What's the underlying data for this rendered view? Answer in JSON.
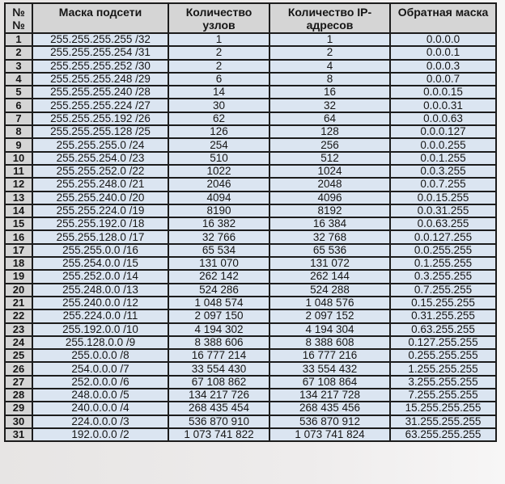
{
  "colors": {
    "header_bg": "#d5d5d5",
    "row_number_bg": "#d5d5d5",
    "data_cell_bg": "#dbe5f1",
    "border": "#1c1c1c",
    "page_bg": "#e9e7e6",
    "text": "#161616"
  },
  "table": {
    "headers": [
      "№№",
      "Маска подсети",
      "Количество узлов",
      "Количество IP-адресов",
      "Обратная маска"
    ],
    "rows": [
      [
        "1",
        "255.255.255.255 /32",
        "1",
        "1",
        "0.0.0.0"
      ],
      [
        "2",
        "255.255.255.254 /31",
        "2",
        "2",
        "0.0.0.1"
      ],
      [
        "3",
        "255.255.255.252 /30",
        "2",
        "4",
        "0.0.0.3"
      ],
      [
        "4",
        "255.255.255.248 /29",
        "6",
        "8",
        "0.0.0.7"
      ],
      [
        "5",
        "255.255.255.240 /28",
        "14",
        "16",
        "0.0.0.15"
      ],
      [
        "6",
        "255.255.255.224 /27",
        "30",
        "32",
        "0.0.0.31"
      ],
      [
        "7",
        "255.255.255.192 /26",
        "62",
        "64",
        "0.0.0.63"
      ],
      [
        "8",
        "255.255.255.128 /25",
        "126",
        "128",
        "0.0.0.127"
      ],
      [
        "9",
        "255.255.255.0 /24",
        "254",
        "256",
        "0.0.0.255"
      ],
      [
        "10",
        "255.255.254.0 /23",
        "510",
        "512",
        "0.0.1.255"
      ],
      [
        "11",
        "255.255.252.0 /22",
        "1022",
        "1024",
        "0.0.3.255"
      ],
      [
        "12",
        "255.255.248.0 /21",
        "2046",
        "2048",
        "0.0.7.255"
      ],
      [
        "13",
        "255.255.240.0 /20",
        "4094",
        "4096",
        "0.0.15.255"
      ],
      [
        "14",
        "255.255.224.0 /19",
        "8190",
        "8192",
        "0.0.31.255"
      ],
      [
        "15",
        "255.255.192.0 /18",
        "16 382",
        "16 384",
        "0.0.63.255"
      ],
      [
        "16",
        "255.255.128.0 /17",
        "32 766",
        "32 768",
        "0.0.127.255"
      ],
      [
        "17",
        "255.255.0.0 /16",
        "65 534",
        "65 536",
        "0.0.255.255"
      ],
      [
        "18",
        "255.254.0.0 /15",
        "131 070",
        "131 072",
        "0.1.255.255"
      ],
      [
        "19",
        "255.252.0.0 /14",
        "262 142",
        "262 144",
        "0.3.255.255"
      ],
      [
        "20",
        "255.248.0.0 /13",
        "524 286",
        "524 288",
        "0.7.255.255"
      ],
      [
        "21",
        "255.240.0.0 /12",
        "1 048 574",
        "1 048 576",
        "0.15.255.255"
      ],
      [
        "22",
        "255.224.0.0 /11",
        "2 097 150",
        "2 097 152",
        "0.31.255.255"
      ],
      [
        "23",
        "255.192.0.0 /10",
        "4 194 302",
        "4 194 304",
        "0.63.255.255"
      ],
      [
        "24",
        "255.128.0.0 /9",
        "8 388 606",
        "8 388 608",
        "0.127.255.255"
      ],
      [
        "25",
        "255.0.0.0 /8",
        "16 777 214",
        "16 777 216",
        "0.255.255.255"
      ],
      [
        "26",
        "254.0.0.0 /7",
        "33 554 430",
        "33 554 432",
        "1.255.255.255"
      ],
      [
        "27",
        "252.0.0.0 /6",
        "67 108 862",
        "67 108 864",
        "3.255.255.255"
      ],
      [
        "28",
        "248.0.0.0 /5",
        "134 217 726",
        "134 217 728",
        "7.255.255.255"
      ],
      [
        "29",
        "240.0.0.0 /4",
        "268 435 454",
        "268 435 456",
        "15.255.255.255"
      ],
      [
        "30",
        "224.0.0.0 /3",
        "536 870 910",
        "536 870 912",
        "31.255.255.255"
      ],
      [
        "31",
        "192.0.0.0 /2",
        "1 073 741 822",
        "1 073 741 824",
        "63.255.255.255"
      ]
    ]
  }
}
